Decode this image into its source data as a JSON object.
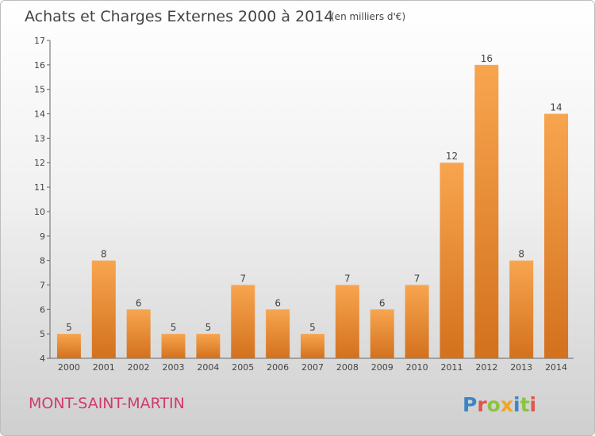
{
  "chart_data": {
    "type": "bar",
    "title": "Achats et Charges Externes 2000 à 2014",
    "subtitle": "(en milliers d'€)",
    "categories": [
      "2000",
      "2001",
      "2002",
      "2003",
      "2004",
      "2005",
      "2006",
      "2007",
      "2008",
      "2009",
      "2010",
      "2011",
      "2012",
      "2013",
      "2014"
    ],
    "values": [
      5,
      8,
      6,
      5,
      5,
      7,
      6,
      5,
      7,
      6,
      7,
      12,
      16,
      8,
      14
    ],
    "ylim": [
      4,
      17
    ],
    "yticks": [
      4,
      5,
      6,
      7,
      8,
      9,
      10,
      11,
      12,
      13,
      14,
      15,
      16,
      17
    ],
    "grid": false,
    "bar_color_top": "#f8a54f",
    "bar_color_bottom": "#d3711d"
  },
  "location": "MONT-SAINT-MARTIN",
  "logo": {
    "text": "Proxiti",
    "letters": [
      {
        "ch": "P",
        "color": "#3d86c6"
      },
      {
        "ch": "r",
        "color": "#e2544d"
      },
      {
        "ch": "o",
        "color": "#8cc43f"
      },
      {
        "ch": "x",
        "color": "#f4a322"
      },
      {
        "ch": "i",
        "color": "#3d86c6"
      },
      {
        "ch": "t",
        "color": "#8cc43f"
      },
      {
        "ch": "i",
        "color": "#e2544d"
      }
    ]
  }
}
